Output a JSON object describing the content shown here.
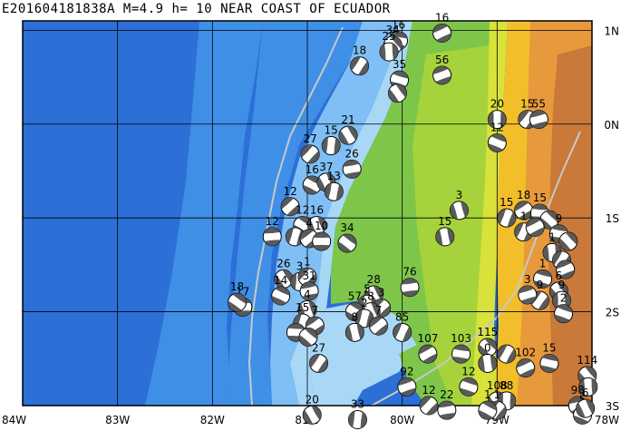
{
  "title": "E201604181838A M=4.9 h= 10 NEAR COAST OF ECUADOR",
  "lon_labels": [
    {
      "lon": -84,
      "text": "84W"
    },
    {
      "lon": -83,
      "text": "83W"
    },
    {
      "lon": -82,
      "text": "82W"
    },
    {
      "lon": -81,
      "text": "81W"
    },
    {
      "lon": -80,
      "text": "80W"
    },
    {
      "lon": -79,
      "text": "79W"
    },
    {
      "lon": -78,
      "text": "78W"
    }
  ],
  "lat_labels": [
    {
      "lat": 1,
      "text": "1N"
    },
    {
      "lat": 0,
      "text": "0N"
    },
    {
      "lat": -1,
      "text": "1S"
    },
    {
      "lat": -2,
      "text": "2S"
    },
    {
      "lat": -3,
      "text": "3S"
    }
  ],
  "extent": {
    "lon_min": -84,
    "lon_max": -78,
    "lat_min": -3,
    "lat_max": 1.1
  },
  "colors": {
    "deep_ocean": "#2c6fd6",
    "ocean": "#3f8fe6",
    "shelf": "#7fbff5",
    "shallow": "#a9d8f6",
    "lowland": "#7ec64a",
    "plain": "#a6d33c",
    "hills": "#d9e23a",
    "foothills": "#f2bf2a",
    "mountains": "#e79a3c",
    "high": "#c9793a",
    "trench_line": "#c8c8c8",
    "mech_dark": "#5a5a5a"
  },
  "mechanisms": [
    {
      "lon": -79.58,
      "lat": 0.97,
      "label": "16"
    },
    {
      "lon": -80.04,
      "lat": 0.89,
      "label": "16"
    },
    {
      "lon": -80.1,
      "lat": 0.84,
      "label": "34"
    },
    {
      "lon": -80.14,
      "lat": 0.77,
      "label": "25"
    },
    {
      "lon": -80.45,
      "lat": 0.62,
      "label": "18"
    },
    {
      "lon": -79.58,
      "lat": 0.52,
      "label": "56"
    },
    {
      "lon": -80.03,
      "lat": 0.47,
      "label": "35"
    },
    {
      "lon": -80.05,
      "lat": 0.33,
      "label": ""
    },
    {
      "lon": -79.0,
      "lat": 0.05,
      "label": "20"
    },
    {
      "lon": -78.68,
      "lat": 0.05,
      "label": "15"
    },
    {
      "lon": -78.56,
      "lat": 0.05,
      "label": "55"
    },
    {
      "lon": -79.0,
      "lat": -0.2,
      "label": "12"
    },
    {
      "lon": -80.57,
      "lat": -0.12,
      "label": "21"
    },
    {
      "lon": -80.75,
      "lat": -0.23,
      "label": "15"
    },
    {
      "lon": -80.97,
      "lat": -0.32,
      "label": "27"
    },
    {
      "lon": -80.53,
      "lat": -0.48,
      "label": "26"
    },
    {
      "lon": -80.95,
      "lat": -0.65,
      "label": "16"
    },
    {
      "lon": -80.8,
      "lat": -0.62,
      "label": "37"
    },
    {
      "lon": -80.72,
      "lat": -0.72,
      "label": "13"
    },
    {
      "lon": -81.18,
      "lat": -0.88,
      "label": "12"
    },
    {
      "lon": -81.37,
      "lat": -1.2,
      "label": "12"
    },
    {
      "lon": -81.05,
      "lat": -1.08,
      "label": "12"
    },
    {
      "lon": -80.9,
      "lat": -1.08,
      "label": "16"
    },
    {
      "lon": -81.13,
      "lat": -1.2,
      "label": ""
    },
    {
      "lon": -80.98,
      "lat": -1.22,
      "label": "4"
    },
    {
      "lon": -80.85,
      "lat": -1.25,
      "label": "10"
    },
    {
      "lon": -80.58,
      "lat": -1.27,
      "label": "34"
    },
    {
      "lon": -79.4,
      "lat": -0.92,
      "label": "3"
    },
    {
      "lon": -78.9,
      "lat": -1.0,
      "label": "15"
    },
    {
      "lon": -78.72,
      "lat": -0.92,
      "label": "18"
    },
    {
      "lon": -78.55,
      "lat": -0.95,
      "label": "15"
    },
    {
      "lon": -78.45,
      "lat": -1.02,
      "label": ""
    },
    {
      "lon": -79.55,
      "lat": -1.2,
      "label": "15"
    },
    {
      "lon": -78.72,
      "lat": -1.15,
      "label": "1"
    },
    {
      "lon": -78.6,
      "lat": -1.1,
      "label": ""
    },
    {
      "lon": -78.35,
      "lat": -1.17,
      "label": "9"
    },
    {
      "lon": -78.25,
      "lat": -1.25,
      "label": ""
    },
    {
      "lon": -78.42,
      "lat": -1.37,
      "label": "1"
    },
    {
      "lon": -78.32,
      "lat": -1.45,
      "label": ""
    },
    {
      "lon": -78.28,
      "lat": -1.55,
      "label": ""
    },
    {
      "lon": -78.52,
      "lat": -1.65,
      "label": "1"
    },
    {
      "lon": -78.35,
      "lat": -1.78,
      "label": "6"
    },
    {
      "lon": -78.32,
      "lat": -1.88,
      "label": "9"
    },
    {
      "lon": -78.55,
      "lat": -1.88,
      "label": "9"
    },
    {
      "lon": -78.68,
      "lat": -1.82,
      "label": "3"
    },
    {
      "lon": -78.3,
      "lat": -2.02,
      "label": "2"
    },
    {
      "lon": -81.25,
      "lat": -1.65,
      "label": "26"
    },
    {
      "lon": -81.08,
      "lat": -1.68,
      "label": "3"
    },
    {
      "lon": -81.0,
      "lat": -1.63,
      "label": "1"
    },
    {
      "lon": -80.98,
      "lat": -1.78,
      "label": "31"
    },
    {
      "lon": -81.28,
      "lat": -1.83,
      "label": "14"
    },
    {
      "lon": -80.3,
      "lat": -1.82,
      "label": "28"
    },
    {
      "lon": -80.37,
      "lat": -1.92,
      "label": "5"
    },
    {
      "lon": -80.22,
      "lat": -1.96,
      "label": "3"
    },
    {
      "lon": -79.92,
      "lat": -1.74,
      "label": "76"
    },
    {
      "lon": -80.5,
      "lat": -2.0,
      "label": "57"
    },
    {
      "lon": -80.33,
      "lat": -2.0,
      "label": "8"
    },
    {
      "lon": -80.4,
      "lat": -2.07,
      "label": "2"
    },
    {
      "lon": -80.25,
      "lat": -2.15,
      "label": "7"
    },
    {
      "lon": -81.68,
      "lat": -1.95,
      "label": "17"
    },
    {
      "lon": -81.74,
      "lat": -1.9,
      "label": "18"
    },
    {
      "lon": -81.0,
      "lat": -1.98,
      "label": "4"
    },
    {
      "lon": -81.05,
      "lat": -2.12,
      "label": "15"
    },
    {
      "lon": -80.92,
      "lat": -2.15,
      "label": "7"
    },
    {
      "lon": -81.12,
      "lat": -2.22,
      "label": ""
    },
    {
      "lon": -80.99,
      "lat": -2.27,
      "label": ""
    },
    {
      "lon": -80.5,
      "lat": -2.22,
      "label": "8"
    },
    {
      "lon": -80.0,
      "lat": -2.22,
      "label": "85"
    },
    {
      "lon": -79.73,
      "lat": -2.45,
      "label": "107"
    },
    {
      "lon": -79.38,
      "lat": -2.45,
      "label": "103"
    },
    {
      "lon": -79.1,
      "lat": -2.38,
      "label": "115"
    },
    {
      "lon": -79.1,
      "lat": -2.55,
      "label": "0"
    },
    {
      "lon": -78.9,
      "lat": -2.45,
      "label": ""
    },
    {
      "lon": -78.7,
      "lat": -2.6,
      "label": "102"
    },
    {
      "lon": -78.45,
      "lat": -2.55,
      "label": "15"
    },
    {
      "lon": -78.05,
      "lat": -2.68,
      "label": "114"
    },
    {
      "lon": -78.04,
      "lat": -2.8,
      "label": ""
    },
    {
      "lon": -80.88,
      "lat": -2.55,
      "label": "27"
    },
    {
      "lon": -79.95,
      "lat": -2.8,
      "label": "92"
    },
    {
      "lon": -79.3,
      "lat": -2.8,
      "label": "12"
    },
    {
      "lon": -79.0,
      "lat": -2.95,
      "label": "108"
    },
    {
      "lon": -78.9,
      "lat": -2.95,
      "label": "88"
    },
    {
      "lon": -79.0,
      "lat": -3.05,
      "label": "1"
    },
    {
      "lon": -78.15,
      "lat": -3.0,
      "label": "98"
    },
    {
      "lon": -78.1,
      "lat": -3.1,
      "label": "5"
    },
    {
      "lon": -80.95,
      "lat": -3.1,
      "label": "20"
    },
    {
      "lon": -80.47,
      "lat": -3.15,
      "label": "33"
    },
    {
      "lon": -79.72,
      "lat": -3.0,
      "label": "12"
    },
    {
      "lon": -79.53,
      "lat": -3.05,
      "label": "22"
    },
    {
      "lon": -79.1,
      "lat": -3.05,
      "label": "1"
    },
    {
      "lon": -78.07,
      "lat": -3.03,
      "label": "6"
    }
  ]
}
